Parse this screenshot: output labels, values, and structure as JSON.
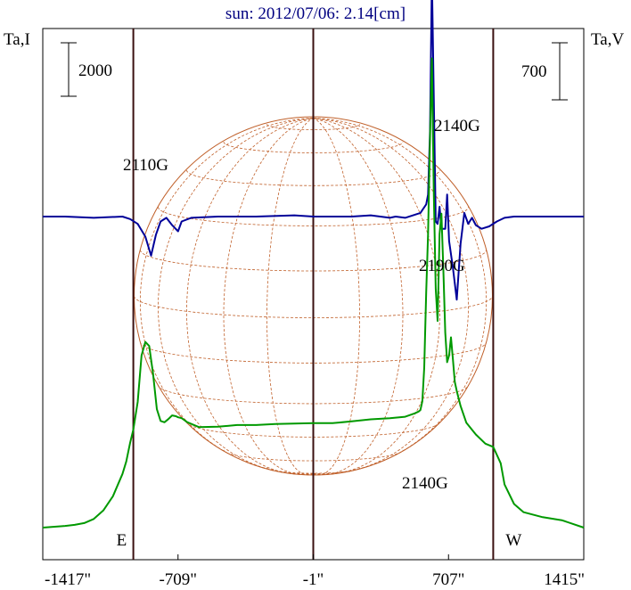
{
  "chart_data": {
    "type": "line",
    "title": "sun: 2012/07/06: 2.14[cm]",
    "left_axis_label": "Ta,I",
    "right_axis_label": "Ta,V",
    "left_scale_bar": "2000",
    "right_scale_bar": "700",
    "x_ticks": [
      "-1417\"",
      "-709\"",
      "-1\"",
      "707\"",
      "1415\""
    ],
    "x_tick_values": [
      -1417,
      -709,
      -1,
      707,
      1415
    ],
    "xlim": [
      -1417,
      1415
    ],
    "grid": false,
    "limb_markers": [
      {
        "label": "E",
        "x": -943
      },
      {
        "label": "W",
        "x": 941
      }
    ],
    "center_marker": -1,
    "annotations": [
      {
        "text": "2110G",
        "x": -850
      },
      {
        "text": "2140G",
        "x": 770
      },
      {
        "text": "2190G",
        "x": 680
      },
      {
        "text": "2140G",
        "x": 600
      }
    ],
    "series": [
      {
        "name": "Ta,V",
        "color": "#000099",
        "x": [
          -1417,
          -1300,
          -1150,
          -1000,
          -960,
          -920,
          -880,
          -850,
          -825,
          -800,
          -770,
          -740,
          -709,
          -690,
          -640,
          -500,
          -300,
          -100,
          0,
          100,
          200,
          300,
          400,
          430,
          480,
          560,
          590,
          600,
          610,
          620,
          640,
          650,
          660,
          670,
          690,
          700,
          710,
          730,
          750,
          770,
          790,
          810,
          830,
          850,
          880,
          920,
          960,
          1000,
          1050,
          1100,
          1200,
          1300,
          1415
        ],
        "y": [
          0.0,
          0.0,
          0.012,
          0.0,
          0.024,
          0.07,
          0.192,
          0.375,
          0.176,
          0.047,
          0.012,
          0.082,
          0.141,
          0.047,
          0.012,
          0.0,
          0.0,
          -0.012,
          0.0,
          0.0,
          0.0,
          -0.012,
          0.012,
          0.0,
          0.012,
          -0.035,
          -0.117,
          -0.211,
          -0.82,
          -2.297,
          0.047,
          0.07,
          -0.094,
          0.117,
          0.117,
          -0.211,
          0.234,
          0.492,
          0.797,
          0.258,
          -0.035,
          0.07,
          0.012,
          0.082,
          0.117,
          0.094,
          0.047,
          0.012,
          0.0,
          0.0,
          0.0,
          0.0,
          0.0
        ]
      },
      {
        "name": "Ta,I",
        "color": "#009900",
        "x": [
          -1417,
          -1300,
          -1250,
          -1200,
          -1150,
          -1100,
          -1050,
          -1000,
          -980,
          -960,
          -943,
          -920,
          -900,
          -880,
          -860,
          -840,
          -820,
          -800,
          -780,
          -760,
          -740,
          -720,
          -709,
          -690,
          -660,
          -600,
          -500,
          -400,
          -300,
          -200,
          -100,
          0,
          100,
          200,
          300,
          400,
          480,
          530,
          550,
          560,
          570,
          580,
          590,
          600,
          610,
          620,
          630,
          640,
          650,
          660,
          670,
          680,
          690,
          700,
          710,
          720,
          730,
          740,
          750,
          770,
          800,
          850,
          900,
          941,
          980,
          1000,
          1050,
          1100,
          1200,
          1300,
          1415
        ],
        "y": [
          0.0,
          0.044,
          0.07,
          0.117,
          0.223,
          0.44,
          0.808,
          1.38,
          1.703,
          2.183,
          2.522,
          3.234,
          4.43,
          4.778,
          4.674,
          3.966,
          3.049,
          2.745,
          2.71,
          2.792,
          2.887,
          2.866,
          2.84,
          2.817,
          2.71,
          2.588,
          2.597,
          2.641,
          2.641,
          2.664,
          2.676,
          2.687,
          2.687,
          2.734,
          2.787,
          2.814,
          2.854,
          2.94,
          2.986,
          3.025,
          3.255,
          4.118,
          6.051,
          7.553,
          10.019,
          12.075,
          8.659,
          6.144,
          5.319,
          7.553,
          8.078,
          6.606,
          5.014,
          4.258,
          4.43,
          4.896,
          4.328,
          3.749,
          3.515,
          3.128,
          2.701,
          2.396,
          2.16,
          2.079,
          1.657,
          1.109,
          0.608,
          0.397,
          0.268,
          0.19,
          0.0
        ]
      }
    ]
  }
}
